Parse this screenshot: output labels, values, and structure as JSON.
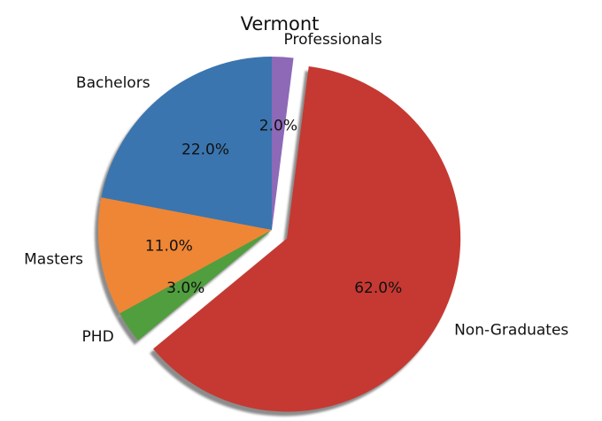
{
  "chart_data": {
    "type": "pie",
    "title": "Vermont",
    "slices": [
      {
        "label": "Bachelors",
        "value": 22.0,
        "pct_label": "22.0%",
        "color": "#3a75af",
        "exploded": false
      },
      {
        "label": "Masters",
        "value": 11.0,
        "pct_label": "11.0%",
        "color": "#ef8635",
        "exploded": false
      },
      {
        "label": "PHD",
        "value": 3.0,
        "pct_label": "3.0%",
        "color": "#519e3e",
        "exploded": false
      },
      {
        "label": "Non-Graduates",
        "value": 62.0,
        "pct_label": "62.0%",
        "color": "#c53932",
        "exploded": true
      },
      {
        "label": "Professionals",
        "value": 2.0,
        "pct_label": "2.0%",
        "color": "#8d69b8",
        "exploded": false
      }
    ],
    "start_angle_deg": 90,
    "direction": "counterclockwise",
    "shadow": true,
    "legend": "none"
  }
}
